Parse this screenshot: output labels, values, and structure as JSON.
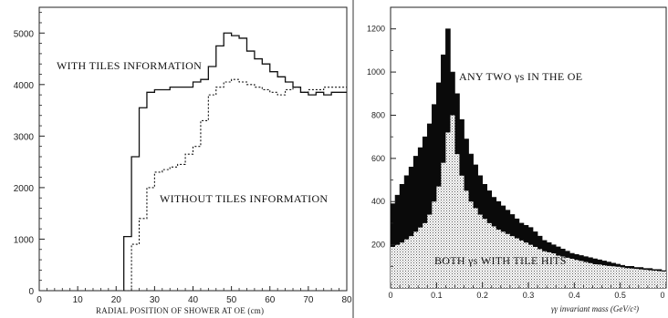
{
  "chart_data": [
    {
      "type": "line",
      "xlabel": "RADIAL POSITION OF SHOWER AT OE (cm)",
      "ylabel": "",
      "xlim": [
        0,
        80
      ],
      "ylim": [
        0,
        5500
      ],
      "xticks": [
        "0",
        "10",
        "20",
        "30",
        "40",
        "50",
        "60",
        "70",
        "80"
      ],
      "yticks": [
        "0",
        "1000",
        "2000",
        "3000",
        "4000",
        "5000"
      ],
      "x_bin_edges": [
        22,
        24,
        26,
        28,
        30,
        32,
        34,
        36,
        38,
        40,
        42,
        44,
        46,
        48,
        50,
        52,
        54,
        56,
        58,
        60,
        62,
        64,
        66,
        68,
        70,
        72,
        74,
        76,
        78,
        80
      ],
      "series": [
        {
          "name": "WITH TILES INFORMATION",
          "style": "solid",
          "values": [
            1050,
            2600,
            3550,
            3850,
            3900,
            3900,
            3950,
            3950,
            3950,
            4050,
            4100,
            4350,
            4750,
            5000,
            4950,
            4900,
            4650,
            4500,
            4400,
            4250,
            4150,
            4050,
            3950,
            3850,
            3800,
            3850,
            3800,
            3850,
            3850
          ]
        },
        {
          "name": "WITHOUT TILES INFORMATION",
          "style": "dotted",
          "values": [
            0,
            900,
            1400,
            2000,
            2300,
            2350,
            2400,
            2450,
            2650,
            2800,
            3300,
            3800,
            3950,
            4050,
            4100,
            4050,
            4000,
            3950,
            3900,
            3850,
            3800,
            3900,
            3950,
            3850,
            3900,
            3900,
            3950,
            3950,
            3950
          ]
        }
      ],
      "annotations": [
        "WITH TILES INFORMATION",
        "WITHOUT TILES INFORMATION"
      ]
    },
    {
      "type": "area",
      "xlabel": "γγ invariant mass (GeV/c²)",
      "ylabel": "",
      "xlim": [
        0,
        0.6
      ],
      "ylim": [
        0,
        1300
      ],
      "xticks": [
        "0",
        "0.1",
        "0.2",
        "0.3",
        "0.4",
        "0.5",
        "0"
      ],
      "yticks": [
        "200",
        "400",
        "600",
        "800",
        "1000",
        "1200"
      ],
      "x_bin_edges": [
        0,
        0.01,
        0.02,
        0.03,
        0.04,
        0.05,
        0.06,
        0.07,
        0.08,
        0.09,
        0.1,
        0.11,
        0.12,
        0.13,
        0.14,
        0.15,
        0.16,
        0.17,
        0.18,
        0.19,
        0.2,
        0.21,
        0.22,
        0.23,
        0.24,
        0.25,
        0.26,
        0.27,
        0.28,
        0.29,
        0.3,
        0.31,
        0.32,
        0.33,
        0.34,
        0.35,
        0.36,
        0.37,
        0.38,
        0.39,
        0.4,
        0.41,
        0.42,
        0.43,
        0.44,
        0.45,
        0.46,
        0.47,
        0.48,
        0.49,
        0.5,
        0.51,
        0.52,
        0.53,
        0.54,
        0.55,
        0.56,
        0.57,
        0.58,
        0.59,
        0.6
      ],
      "series": [
        {
          "name": "ANY TWO γs IN THE OE",
          "style": "black-fill",
          "values": [
            390,
            430,
            480,
            520,
            560,
            610,
            650,
            700,
            760,
            850,
            950,
            1080,
            1200,
            1000,
            900,
            780,
            690,
            620,
            570,
            520,
            480,
            450,
            420,
            400,
            380,
            360,
            340,
            320,
            300,
            290,
            280,
            260,
            240,
            220,
            210,
            200,
            190,
            180,
            170,
            160,
            155,
            150,
            145,
            140,
            135,
            130,
            125,
            120,
            115,
            110,
            105,
            100,
            100,
            95,
            95,
            90,
            90,
            85,
            85,
            80
          ]
        },
        {
          "name": "BOTH γs WITH TILE HITS",
          "style": "dotted-fill",
          "values": [
            190,
            200,
            210,
            225,
            240,
            260,
            280,
            300,
            340,
            400,
            470,
            580,
            720,
            800,
            620,
            520,
            450,
            400,
            370,
            340,
            320,
            300,
            285,
            270,
            260,
            250,
            240,
            230,
            220,
            210,
            200,
            190,
            180,
            170,
            165,
            160,
            150,
            145,
            140,
            135,
            130,
            125,
            120,
            115,
            110,
            108,
            105,
            102,
            100,
            98,
            95,
            92,
            90,
            88,
            86,
            84,
            82,
            80,
            78,
            76
          ]
        }
      ],
      "annotations": [
        "ANY TWO γs IN THE OE",
        "BOTH γs WITH TILE HITS"
      ]
    }
  ]
}
